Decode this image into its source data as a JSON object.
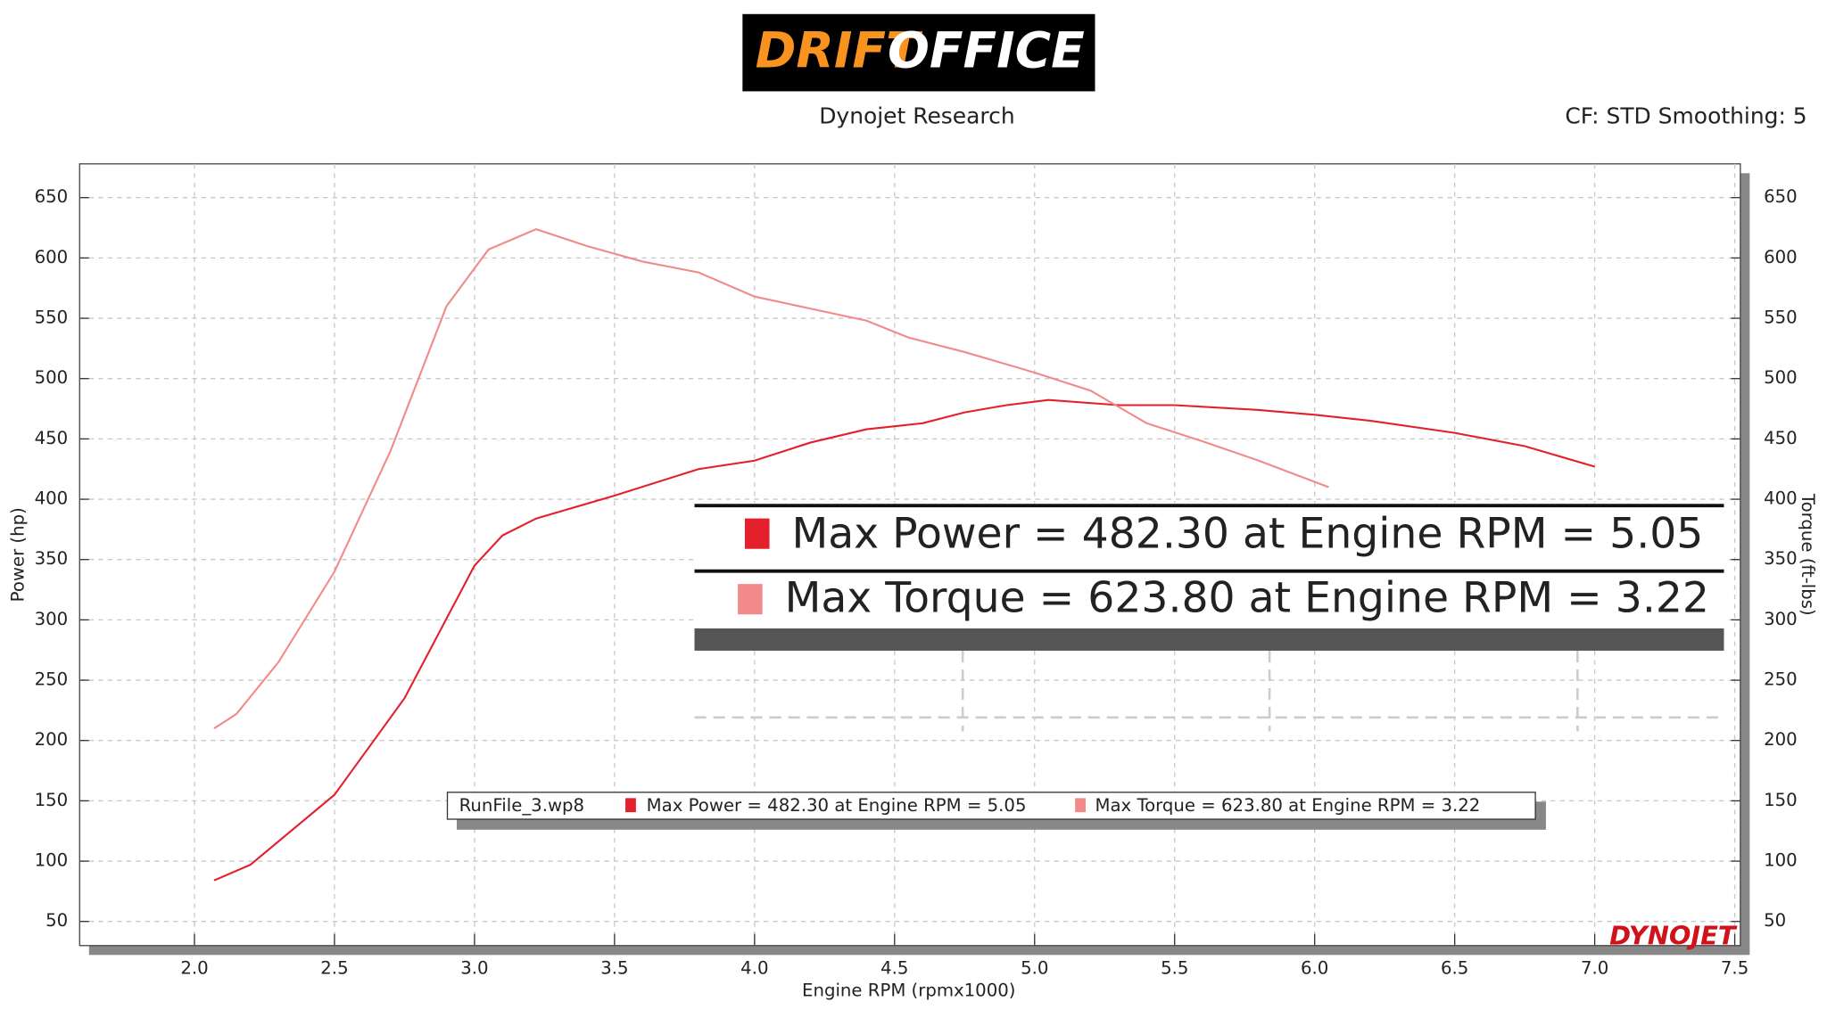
{
  "chart_data": {
    "type": "line",
    "logo": [
      "DRIFT",
      "OFFICE"
    ],
    "title": "Dynojet Research",
    "subtitle": "CF: STD Smoothing: 5",
    "xlabel": "Engine RPM (rpmx1000)",
    "ylabel": "Power (hp)",
    "y2label": "Torque (ft-lbs)",
    "legend_title": "RunFile_3.wp8",
    "watermark": "DYNOJET",
    "grid": true,
    "xlim": [
      1.59,
      7.52
    ],
    "xticks": [
      {
        "value": 2,
        "label": "2.0"
      },
      {
        "value": 2.5,
        "label": "2.5"
      },
      {
        "value": 3,
        "label": "3.0"
      },
      {
        "value": 3.5,
        "label": "3.5"
      },
      {
        "value": 4,
        "label": "4.0"
      },
      {
        "value": 4.5,
        "label": "4.5"
      },
      {
        "value": 5,
        "label": "5.0"
      },
      {
        "value": 5.5,
        "label": "5.5"
      },
      {
        "value": 6,
        "label": "6.0"
      },
      {
        "value": 6.5,
        "label": "6.5"
      },
      {
        "value": 7,
        "label": "7.0"
      },
      {
        "value": 7.5,
        "label": "7.5"
      }
    ],
    "ylim": [
      30,
      678
    ],
    "yticks": [
      50,
      100,
      150,
      200,
      250,
      300,
      350,
      400,
      450,
      500,
      550,
      600,
      650
    ],
    "y2lim": [
      30,
      678
    ],
    "y2ticks": [
      50,
      100,
      150,
      200,
      250,
      300,
      350,
      400,
      450,
      500,
      550,
      600,
      650
    ],
    "series": [
      {
        "name": "Max Power = 482.30 at Engine RPM = 5.05",
        "color": "#e3202c",
        "x": [
          2.07,
          2.2,
          2.5,
          2.75,
          3.0,
          3.1,
          3.22,
          3.5,
          3.8,
          4.0,
          4.2,
          4.4,
          4.6,
          4.75,
          4.9,
          5.05,
          5.3,
          5.5,
          5.8,
          6.0,
          6.2,
          6.5,
          6.75,
          7.0
        ],
        "values": [
          84,
          97,
          155,
          235,
          345,
          370,
          384,
          403,
          425,
          432,
          447,
          458,
          463,
          472,
          478,
          482.3,
          478,
          478,
          474,
          470,
          465,
          455,
          444,
          427
        ]
      },
      {
        "name": "Max Torque = 623.80 at Engine RPM = 3.22",
        "color": "#f28a8a",
        "axis": "y2",
        "x": [
          2.07,
          2.15,
          2.3,
          2.5,
          2.7,
          2.9,
          3.05,
          3.22,
          3.4,
          3.6,
          3.8,
          4.0,
          4.2,
          4.4,
          4.55,
          4.75,
          5.0,
          5.2,
          5.4,
          5.6,
          5.8,
          6.05
        ],
        "values": [
          210,
          222,
          265,
          340,
          440,
          560,
          607,
          623.8,
          610,
          597,
          588,
          568,
          558,
          548,
          534,
          522,
          505,
          490,
          463,
          448,
          432,
          410
        ]
      }
    ]
  }
}
